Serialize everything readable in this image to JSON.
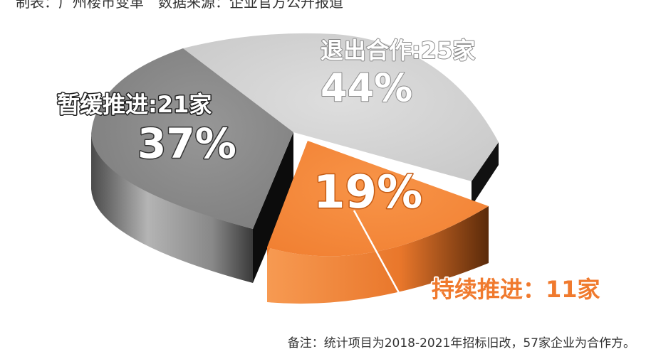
{
  "header": {
    "caption": "制表：广州楼市变革　数据来源：企业官方公开报道"
  },
  "footnote": "备注：统计项目为2018-2021年招标旧改，57家企业为合作方。",
  "colors": {
    "exit": "#d0d0d0",
    "pause": "#8c8c8c",
    "continue": "#f4883a",
    "label_orange": "#f07a2e"
  },
  "chart_data": {
    "type": "pie",
    "style": "3d-exploded",
    "unit": "家",
    "total": 57,
    "slices": [
      {
        "name": "退出合作",
        "count": 25,
        "percent": 44,
        "label": "退出合作:25家",
        "percent_label": "44%"
      },
      {
        "name": "暂缓推进",
        "count": 21,
        "percent": 37,
        "label": "暂缓推进:21家",
        "percent_label": "37%"
      },
      {
        "name": "持续推进",
        "count": 11,
        "percent": 19,
        "label": "持续推进：11家",
        "percent_label": "19%"
      }
    ]
  }
}
